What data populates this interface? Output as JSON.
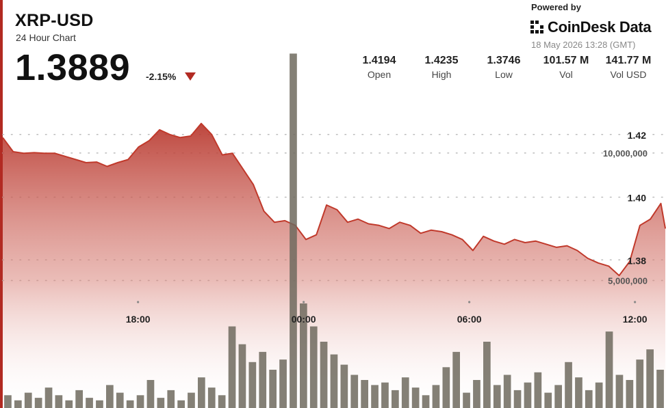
{
  "header": {
    "symbol": "XRP-USD",
    "subtitle": "24 Hour Chart",
    "price": "1.3889",
    "change": "-2.15%",
    "powered_by": "Powered by",
    "brand": "CoinDesk Data",
    "timestamp": "18 May 2026 13:28 (GMT)"
  },
  "stats": [
    {
      "value": "1.4194",
      "label": "Open"
    },
    {
      "value": "1.4235",
      "label": "High"
    },
    {
      "value": "1.3746",
      "label": "Low"
    },
    {
      "value": "101.57 M",
      "label": "Vol"
    },
    {
      "value": "141.77 M",
      "label": "Vol USD"
    }
  ],
  "colors": {
    "accent": "#b22a22",
    "line": "#c0392b",
    "volume_bar": "#6f6a5e",
    "grid_dot": "#bbbbbb"
  },
  "chart_data": {
    "type": "area",
    "title": "XRP-USD",
    "grid": true,
    "x_ticks": [
      "18:00",
      "00:00",
      "06:00",
      "12:00"
    ],
    "x_tick_hours": [
      18,
      24,
      30,
      36
    ],
    "x_range_hours": [
      13.1,
      37.1
    ],
    "price_axis": {
      "ticks": [
        "1.42",
        "1.40",
        "1.38"
      ],
      "tick_values": [
        1.42,
        1.4,
        1.38
      ],
      "range": [
        1.36,
        1.44
      ]
    },
    "volume_axis": {
      "ticks": [
        "10,000,000",
        "5,000,000"
      ],
      "tick_values": [
        10000000,
        5000000
      ],
      "range": [
        0,
        16000000
      ]
    },
    "price": {
      "x": [
        13.1,
        13.48,
        13.86,
        14.24,
        14.61,
        14.99,
        15.37,
        15.75,
        16.12,
        16.5,
        16.88,
        17.26,
        17.64,
        18.02,
        18.4,
        18.78,
        19.15,
        19.53,
        19.91,
        20.29,
        20.67,
        21.05,
        21.42,
        21.8,
        22.18,
        22.56,
        22.94,
        23.32,
        23.7,
        24.08,
        24.46,
        24.83,
        25.21,
        25.59,
        25.97,
        26.35,
        26.73,
        27.1,
        27.48,
        27.86,
        28.24,
        28.62,
        29.0,
        29.37,
        29.75,
        30.13,
        30.51,
        30.89,
        31.27,
        31.64,
        32.02,
        32.4,
        32.78,
        33.16,
        33.54,
        33.91,
        34.29,
        34.67,
        35.05,
        35.43,
        35.81,
        36.18,
        36.56,
        36.94,
        37.1
      ],
      "y": [
        1.419,
        1.4145,
        1.414,
        1.4142,
        1.414,
        1.414,
        1.413,
        1.412,
        1.411,
        1.4112,
        1.4098,
        1.411,
        1.412,
        1.416,
        1.418,
        1.4215,
        1.42,
        1.419,
        1.4195,
        1.4235,
        1.42,
        1.4135,
        1.414,
        1.409,
        1.404,
        1.3955,
        1.392,
        1.3925,
        1.391,
        1.3865,
        1.388,
        1.3975,
        1.396,
        1.392,
        1.393,
        1.3915,
        1.391,
        1.39,
        1.392,
        1.391,
        1.3885,
        1.3895,
        1.389,
        1.388,
        1.3865,
        1.383,
        1.3875,
        1.386,
        1.385,
        1.3865,
        1.3855,
        1.386,
        1.385,
        1.384,
        1.3845,
        1.383,
        1.3805,
        1.379,
        1.378,
        1.375,
        1.3795,
        1.391,
        1.393,
        1.398,
        1.39
      ]
    },
    "volume": {
      "values": [
        500000,
        300000,
        600000,
        400000,
        800000,
        500000,
        300000,
        700000,
        400000,
        300000,
        900000,
        600000,
        300000,
        500000,
        1100000,
        400000,
        700000,
        300000,
        600000,
        1200000,
        800000,
        500000,
        3200000,
        2500000,
        1800000,
        2200000,
        1500000,
        1900000,
        13900000,
        4100000,
        3200000,
        2600000,
        2100000,
        1700000,
        1300000,
        1100000,
        900000,
        1000000,
        700000,
        1200000,
        800000,
        500000,
        900000,
        1600000,
        2200000,
        600000,
        1100000,
        2600000,
        900000,
        1300000,
        700000,
        1000000,
        1400000,
        600000,
        900000,
        1800000,
        1200000,
        700000,
        1000000,
        3000000,
        1300000,
        1100000,
        1900000,
        2300000,
        1500000
      ]
    }
  }
}
